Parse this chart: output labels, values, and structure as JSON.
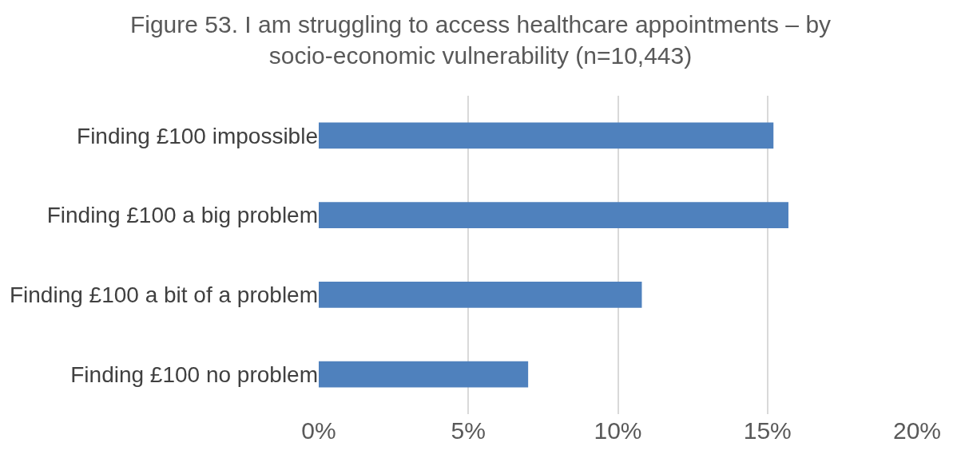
{
  "chart_data": {
    "type": "bar",
    "orientation": "horizontal",
    "title": "Figure 53. I am struggling to access healthcare appointments – by socio-economic vulnerability (n=10,443)",
    "categories": [
      "Finding £100 impossible",
      "Finding £100 a big problem",
      "Finding £100 a bit of a problem",
      "Finding £100 no problem"
    ],
    "values": [
      15.2,
      15.7,
      10.8,
      7.0
    ],
    "color": "#4f81bd",
    "xlim": [
      0,
      20
    ],
    "xticks": [
      {
        "value": 0,
        "label": "0%"
      },
      {
        "value": 5,
        "label": "5%"
      },
      {
        "value": 10,
        "label": "10%"
      },
      {
        "value": 15,
        "label": "15%"
      },
      {
        "value": 20,
        "label": "20%"
      }
    ],
    "grid": "x"
  }
}
